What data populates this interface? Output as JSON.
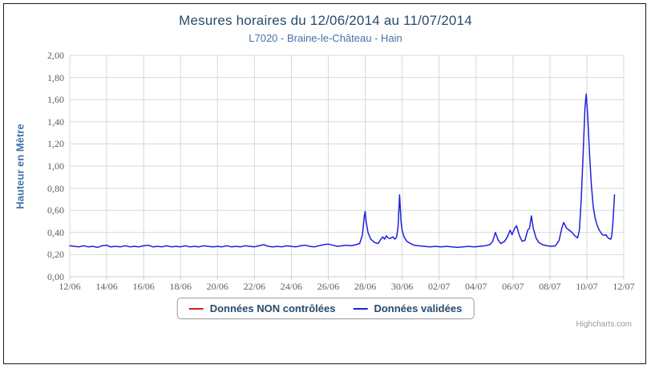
{
  "chart_data": {
    "type": "line",
    "title": "Mesures horaires du 12/06/2014 au 11/07/2014",
    "subtitle": "L7020 - Braine-le-Château - Hain",
    "ylabel": "Hauteur en Mètre",
    "ylim": [
      0,
      2
    ],
    "xlim_days": [
      0,
      30
    ],
    "grid": true,
    "legend_position": "bottom",
    "colors": {
      "title": "#274b6d",
      "subtitle": "#4572a7",
      "axis_labels": "#606060",
      "grid_line": "#d8d8d8",
      "axis_line": "#c0d0e0",
      "legend_text": "#274b6d"
    },
    "y_ticks": [
      {
        "label": "2,00",
        "value": 2.0
      },
      {
        "label": "1,80",
        "value": 1.8
      },
      {
        "label": "1,60",
        "value": 1.6
      },
      {
        "label": "1,40",
        "value": 1.4
      },
      {
        "label": "1,20",
        "value": 1.2
      },
      {
        "label": "1,00",
        "value": 1.0
      },
      {
        "label": "0,80",
        "value": 0.8
      },
      {
        "label": "0,60",
        "value": 0.6
      },
      {
        "label": "0,40",
        "value": 0.4
      },
      {
        "label": "0,20",
        "value": 0.2
      },
      {
        "label": "0,00",
        "value": 0.0
      }
    ],
    "x_ticks": [
      {
        "label": "12/06",
        "day": 0
      },
      {
        "label": "14/06",
        "day": 2
      },
      {
        "label": "16/06",
        "day": 4
      },
      {
        "label": "18/06",
        "day": 6
      },
      {
        "label": "20/06",
        "day": 8
      },
      {
        "label": "22/06",
        "day": 10
      },
      {
        "label": "24/06",
        "day": 12
      },
      {
        "label": "26/06",
        "day": 14
      },
      {
        "label": "28/06",
        "day": 16
      },
      {
        "label": "30/06",
        "day": 18
      },
      {
        "label": "02/07",
        "day": 20
      },
      {
        "label": "04/07",
        "day": 22
      },
      {
        "label": "06/07",
        "day": 24
      },
      {
        "label": "08/07",
        "day": 26
      },
      {
        "label": "10/07",
        "day": 28
      },
      {
        "label": "12/07",
        "day": 30
      }
    ],
    "series": [
      {
        "name": "Données NON contrôlées",
        "color": "#d02020",
        "data": []
      },
      {
        "name": "Données validées",
        "color": "#2020dd",
        "data": [
          [
            0,
            0.28
          ],
          [
            0.25,
            0.275
          ],
          [
            0.5,
            0.27
          ],
          [
            0.75,
            0.28
          ],
          [
            1,
            0.27
          ],
          [
            1.25,
            0.275
          ],
          [
            1.5,
            0.265
          ],
          [
            1.75,
            0.28
          ],
          [
            2,
            0.285
          ],
          [
            2.2,
            0.27
          ],
          [
            2.5,
            0.275
          ],
          [
            2.75,
            0.27
          ],
          [
            3,
            0.28
          ],
          [
            3.25,
            0.27
          ],
          [
            3.5,
            0.275
          ],
          [
            3.75,
            0.27
          ],
          [
            4,
            0.28
          ],
          [
            4.25,
            0.285
          ],
          [
            4.5,
            0.27
          ],
          [
            4.75,
            0.275
          ],
          [
            5,
            0.27
          ],
          [
            5.25,
            0.28
          ],
          [
            5.5,
            0.27
          ],
          [
            5.75,
            0.275
          ],
          [
            6,
            0.27
          ],
          [
            6.25,
            0.28
          ],
          [
            6.5,
            0.27
          ],
          [
            6.75,
            0.275
          ],
          [
            7,
            0.27
          ],
          [
            7.25,
            0.28
          ],
          [
            7.5,
            0.275
          ],
          [
            7.75,
            0.27
          ],
          [
            8,
            0.275
          ],
          [
            8.25,
            0.27
          ],
          [
            8.5,
            0.28
          ],
          [
            8.75,
            0.27
          ],
          [
            9,
            0.275
          ],
          [
            9.25,
            0.27
          ],
          [
            9.5,
            0.28
          ],
          [
            9.75,
            0.275
          ],
          [
            10,
            0.27
          ],
          [
            10.25,
            0.28
          ],
          [
            10.5,
            0.29
          ],
          [
            10.75,
            0.275
          ],
          [
            11,
            0.27
          ],
          [
            11.25,
            0.275
          ],
          [
            11.5,
            0.27
          ],
          [
            11.75,
            0.28
          ],
          [
            12,
            0.275
          ],
          [
            12.25,
            0.27
          ],
          [
            12.5,
            0.28
          ],
          [
            12.75,
            0.285
          ],
          [
            13,
            0.275
          ],
          [
            13.25,
            0.27
          ],
          [
            13.5,
            0.28
          ],
          [
            13.75,
            0.29
          ],
          [
            14,
            0.295
          ],
          [
            14.25,
            0.285
          ],
          [
            14.5,
            0.275
          ],
          [
            14.75,
            0.28
          ],
          [
            15,
            0.285
          ],
          [
            15.25,
            0.28
          ],
          [
            15.5,
            0.29
          ],
          [
            15.7,
            0.3
          ],
          [
            15.85,
            0.38
          ],
          [
            15.95,
            0.55
          ],
          [
            16.0,
            0.59
          ],
          [
            16.05,
            0.5
          ],
          [
            16.15,
            0.4
          ],
          [
            16.3,
            0.34
          ],
          [
            16.5,
            0.31
          ],
          [
            16.7,
            0.3
          ],
          [
            16.85,
            0.34
          ],
          [
            16.95,
            0.36
          ],
          [
            17.05,
            0.34
          ],
          [
            17.15,
            0.37
          ],
          [
            17.25,
            0.35
          ],
          [
            17.35,
            0.345
          ],
          [
            17.5,
            0.36
          ],
          [
            17.6,
            0.34
          ],
          [
            17.7,
            0.36
          ],
          [
            17.78,
            0.45
          ],
          [
            17.86,
            0.74
          ],
          [
            17.94,
            0.5
          ],
          [
            18.0,
            0.42
          ],
          [
            18.1,
            0.36
          ],
          [
            18.25,
            0.32
          ],
          [
            18.45,
            0.3
          ],
          [
            18.65,
            0.285
          ],
          [
            18.9,
            0.28
          ],
          [
            19.2,
            0.275
          ],
          [
            19.5,
            0.27
          ],
          [
            19.8,
            0.275
          ],
          [
            20.1,
            0.27
          ],
          [
            20.4,
            0.275
          ],
          [
            20.7,
            0.27
          ],
          [
            21,
            0.265
          ],
          [
            21.3,
            0.27
          ],
          [
            21.6,
            0.275
          ],
          [
            21.9,
            0.27
          ],
          [
            22.2,
            0.275
          ],
          [
            22.5,
            0.28
          ],
          [
            22.75,
            0.29
          ],
          [
            22.9,
            0.32
          ],
          [
            23.05,
            0.4
          ],
          [
            23.2,
            0.33
          ],
          [
            23.35,
            0.3
          ],
          [
            23.55,
            0.32
          ],
          [
            23.7,
            0.36
          ],
          [
            23.85,
            0.42
          ],
          [
            23.95,
            0.38
          ],
          [
            24.1,
            0.44
          ],
          [
            24.2,
            0.46
          ],
          [
            24.35,
            0.37
          ],
          [
            24.5,
            0.32
          ],
          [
            24.65,
            0.33
          ],
          [
            24.8,
            0.42
          ],
          [
            24.9,
            0.44
          ],
          [
            25.0,
            0.55
          ],
          [
            25.1,
            0.44
          ],
          [
            25.25,
            0.35
          ],
          [
            25.4,
            0.31
          ],
          [
            25.6,
            0.29
          ],
          [
            25.85,
            0.28
          ],
          [
            26.1,
            0.275
          ],
          [
            26.3,
            0.28
          ],
          [
            26.5,
            0.33
          ],
          [
            26.65,
            0.44
          ],
          [
            26.75,
            0.49
          ],
          [
            26.9,
            0.44
          ],
          [
            27.05,
            0.42
          ],
          [
            27.2,
            0.4
          ],
          [
            27.35,
            0.37
          ],
          [
            27.5,
            0.35
          ],
          [
            27.6,
            0.42
          ],
          [
            27.7,
            0.7
          ],
          [
            27.8,
            1.1
          ],
          [
            27.9,
            1.52
          ],
          [
            27.97,
            1.65
          ],
          [
            28.05,
            1.45
          ],
          [
            28.15,
            1.1
          ],
          [
            28.25,
            0.82
          ],
          [
            28.35,
            0.63
          ],
          [
            28.45,
            0.53
          ],
          [
            28.55,
            0.47
          ],
          [
            28.65,
            0.43
          ],
          [
            28.75,
            0.4
          ],
          [
            28.85,
            0.38
          ],
          [
            28.95,
            0.375
          ],
          [
            29.05,
            0.38
          ],
          [
            29.1,
            0.36
          ],
          [
            29.2,
            0.345
          ],
          [
            29.3,
            0.34
          ],
          [
            29.35,
            0.37
          ],
          [
            29.42,
            0.5
          ],
          [
            29.5,
            0.74
          ]
        ]
      }
    ]
  },
  "credits": {
    "label": "Highcharts.com"
  }
}
